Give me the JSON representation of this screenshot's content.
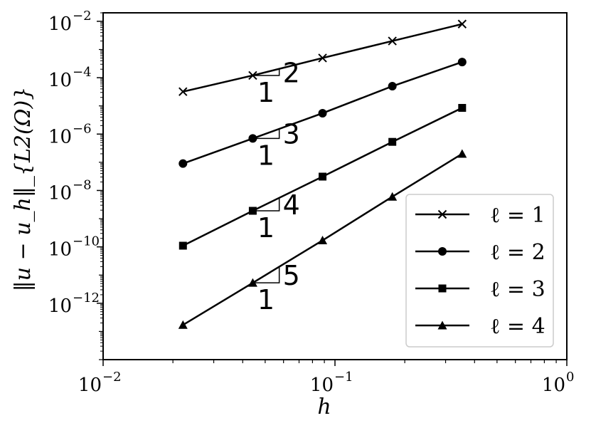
{
  "chart_data": {
    "type": "line",
    "xscale": "log",
    "yscale": "log",
    "xlim": [
      0.01,
      1
    ],
    "ylim": [
      1e-14,
      0.02
    ],
    "xlabel": "h",
    "ylabel": "‖u − u_h‖_{L2(Ω)}",
    "grid": false,
    "legend_position": "lower-right",
    "x_ticks": [
      {
        "value": 0.01,
        "base": "10",
        "exp": "−2"
      },
      {
        "value": 0.1,
        "base": "10",
        "exp": "−1"
      },
      {
        "value": 1,
        "base": "10",
        "exp": "0"
      }
    ],
    "y_ticks": [
      {
        "value": 0.01,
        "base": "10",
        "exp": "−2"
      },
      {
        "value": 0.0001,
        "base": "10",
        "exp": "−4"
      },
      {
        "value": 1e-06,
        "base": "10",
        "exp": "−6"
      },
      {
        "value": 1e-08,
        "base": "10",
        "exp": "−8"
      },
      {
        "value": 1e-10,
        "base": "10",
        "exp": "−10"
      },
      {
        "value": 1e-12,
        "base": "10",
        "exp": "−12"
      }
    ],
    "x": [
      0.0221,
      0.0442,
      0.0884,
      0.1768,
      0.3536
    ],
    "series": [
      {
        "name": "ℓ = 1",
        "marker": "x",
        "values": [
          3.2e-05,
          0.00012,
          0.0005,
          0.002,
          0.008
        ]
      },
      {
        "name": "ℓ = 2",
        "marker": "circle",
        "values": [
          9e-08,
          7e-07,
          5.5e-06,
          5e-05,
          0.00036
        ]
      },
      {
        "name": "ℓ = 3",
        "marker": "square",
        "values": [
          1.1e-10,
          1.9e-09,
          3.1e-08,
          5.3e-07,
          8.5e-06
        ]
      },
      {
        "name": "ℓ = 4",
        "marker": "triangle",
        "values": [
          1.7e-13,
          5.3e-12,
          1.7e-10,
          6e-09,
          2e-07
        ]
      }
    ],
    "slope_triangles": [
      {
        "series": 0,
        "rise_label": "2",
        "run_label": "1",
        "x_start": 0.0442,
        "x_end": 0.0575,
        "y_start": 0.00012
      },
      {
        "series": 1,
        "rise_label": "3",
        "run_label": "1",
        "x_start": 0.0442,
        "x_end": 0.0575,
        "y_start": 7e-07
      },
      {
        "series": 2,
        "rise_label": "4",
        "run_label": "1",
        "x_start": 0.0442,
        "x_end": 0.0575,
        "y_start": 1.9e-09
      },
      {
        "series": 3,
        "rise_label": "5",
        "run_label": "1",
        "x_start": 0.0442,
        "x_end": 0.0575,
        "y_start": 5.3e-12
      }
    ],
    "line_color": "#000000"
  }
}
